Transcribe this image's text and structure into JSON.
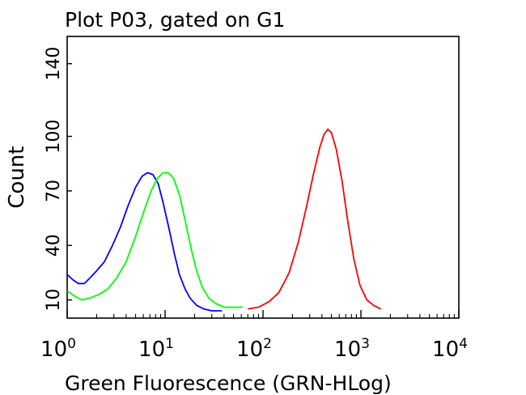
{
  "chart_data": {
    "type": "line",
    "title": "Plot P03, gated on G1",
    "xlabel": "Green Fluorescence (GRN-HLog)",
    "ylabel": "Count",
    "x_scale": "log",
    "xlim": [
      1,
      10000
    ],
    "ylim": [
      0,
      155
    ],
    "x_ticks": [
      {
        "value": 1,
        "base": "10",
        "exp": "0"
      },
      {
        "value": 10,
        "base": "10",
        "exp": "1"
      },
      {
        "value": 100,
        "base": "10",
        "exp": "2"
      },
      {
        "value": 1000,
        "base": "10",
        "exp": "3"
      },
      {
        "value": 10000,
        "base": "10",
        "exp": "4"
      }
    ],
    "y_ticks": [
      10,
      40,
      70,
      100,
      140
    ],
    "grid": false,
    "series": [
      {
        "color": "#0000ff",
        "points": [
          [
            1.0,
            24
          ],
          [
            1.15,
            21
          ],
          [
            1.3,
            19
          ],
          [
            1.5,
            19
          ],
          [
            1.7,
            22
          ],
          [
            2.0,
            26
          ],
          [
            2.4,
            31
          ],
          [
            2.9,
            40
          ],
          [
            3.5,
            50
          ],
          [
            4.2,
            62
          ],
          [
            5.0,
            72
          ],
          [
            5.8,
            78
          ],
          [
            6.6,
            80
          ],
          [
            7.5,
            79
          ],
          [
            8.5,
            74
          ],
          [
            9.5,
            64
          ],
          [
            11,
            49
          ],
          [
            12.5,
            35
          ],
          [
            14,
            24
          ],
          [
            16,
            16
          ],
          [
            18,
            11
          ],
          [
            21,
            7
          ],
          [
            25,
            5
          ],
          [
            30,
            4
          ],
          [
            38,
            4
          ]
        ]
      },
      {
        "color": "#00ff00",
        "points": [
          [
            1.0,
            15
          ],
          [
            1.2,
            12
          ],
          [
            1.4,
            10
          ],
          [
            1.7,
            11
          ],
          [
            2.1,
            13
          ],
          [
            2.6,
            16
          ],
          [
            3.2,
            22
          ],
          [
            4.0,
            31
          ],
          [
            5.0,
            45
          ],
          [
            6.0,
            58
          ],
          [
            7.2,
            70
          ],
          [
            8.4,
            77
          ],
          [
            9.5,
            80
          ],
          [
            10.8,
            80
          ],
          [
            12.2,
            77
          ],
          [
            14,
            68
          ],
          [
            16,
            54
          ],
          [
            18.5,
            38
          ],
          [
            21,
            26
          ],
          [
            24,
            17
          ],
          [
            28,
            11
          ],
          [
            33,
            8
          ],
          [
            40,
            6
          ],
          [
            50,
            6
          ],
          [
            62,
            6
          ]
        ]
      },
      {
        "color": "#ff0000",
        "points": [
          [
            70,
            5
          ],
          [
            90,
            6
          ],
          [
            115,
            9
          ],
          [
            145,
            14
          ],
          [
            185,
            25
          ],
          [
            230,
            42
          ],
          [
            280,
            62
          ],
          [
            330,
            80
          ],
          [
            380,
            94
          ],
          [
            420,
            101
          ],
          [
            460,
            104
          ],
          [
            500,
            102
          ],
          [
            560,
            93
          ],
          [
            640,
            76
          ],
          [
            740,
            52
          ],
          [
            850,
            32
          ],
          [
            980,
            18
          ],
          [
            1150,
            10
          ],
          [
            1350,
            7
          ],
          [
            1600,
            5
          ]
        ]
      }
    ]
  }
}
